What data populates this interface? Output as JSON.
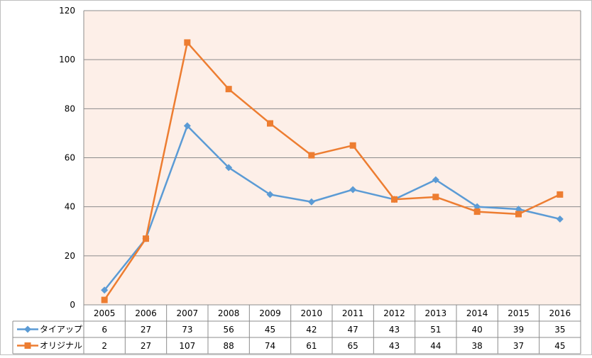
{
  "chart_data": {
    "type": "line",
    "title": "",
    "xlabel": "",
    "ylabel": "",
    "categories": [
      "2005",
      "2006",
      "2007",
      "2008",
      "2009",
      "2010",
      "2011",
      "2012",
      "2013",
      "2014",
      "2015",
      "2016"
    ],
    "ylim": [
      0,
      120
    ],
    "yticks": [
      0,
      20,
      40,
      60,
      80,
      100,
      120
    ],
    "grid": true,
    "legend": "data-table",
    "series": [
      {
        "name": "タイアップ",
        "color": "#5b9bd5",
        "marker": "diamond",
        "values": [
          6,
          27,
          73,
          56,
          45,
          42,
          47,
          43,
          51,
          40,
          39,
          35
        ]
      },
      {
        "name": "オリジナル",
        "color": "#ed7d31",
        "marker": "square",
        "values": [
          2,
          27,
          107,
          88,
          74,
          61,
          65,
          43,
          44,
          38,
          37,
          45
        ]
      }
    ],
    "plot_background": "#fdefe8"
  }
}
